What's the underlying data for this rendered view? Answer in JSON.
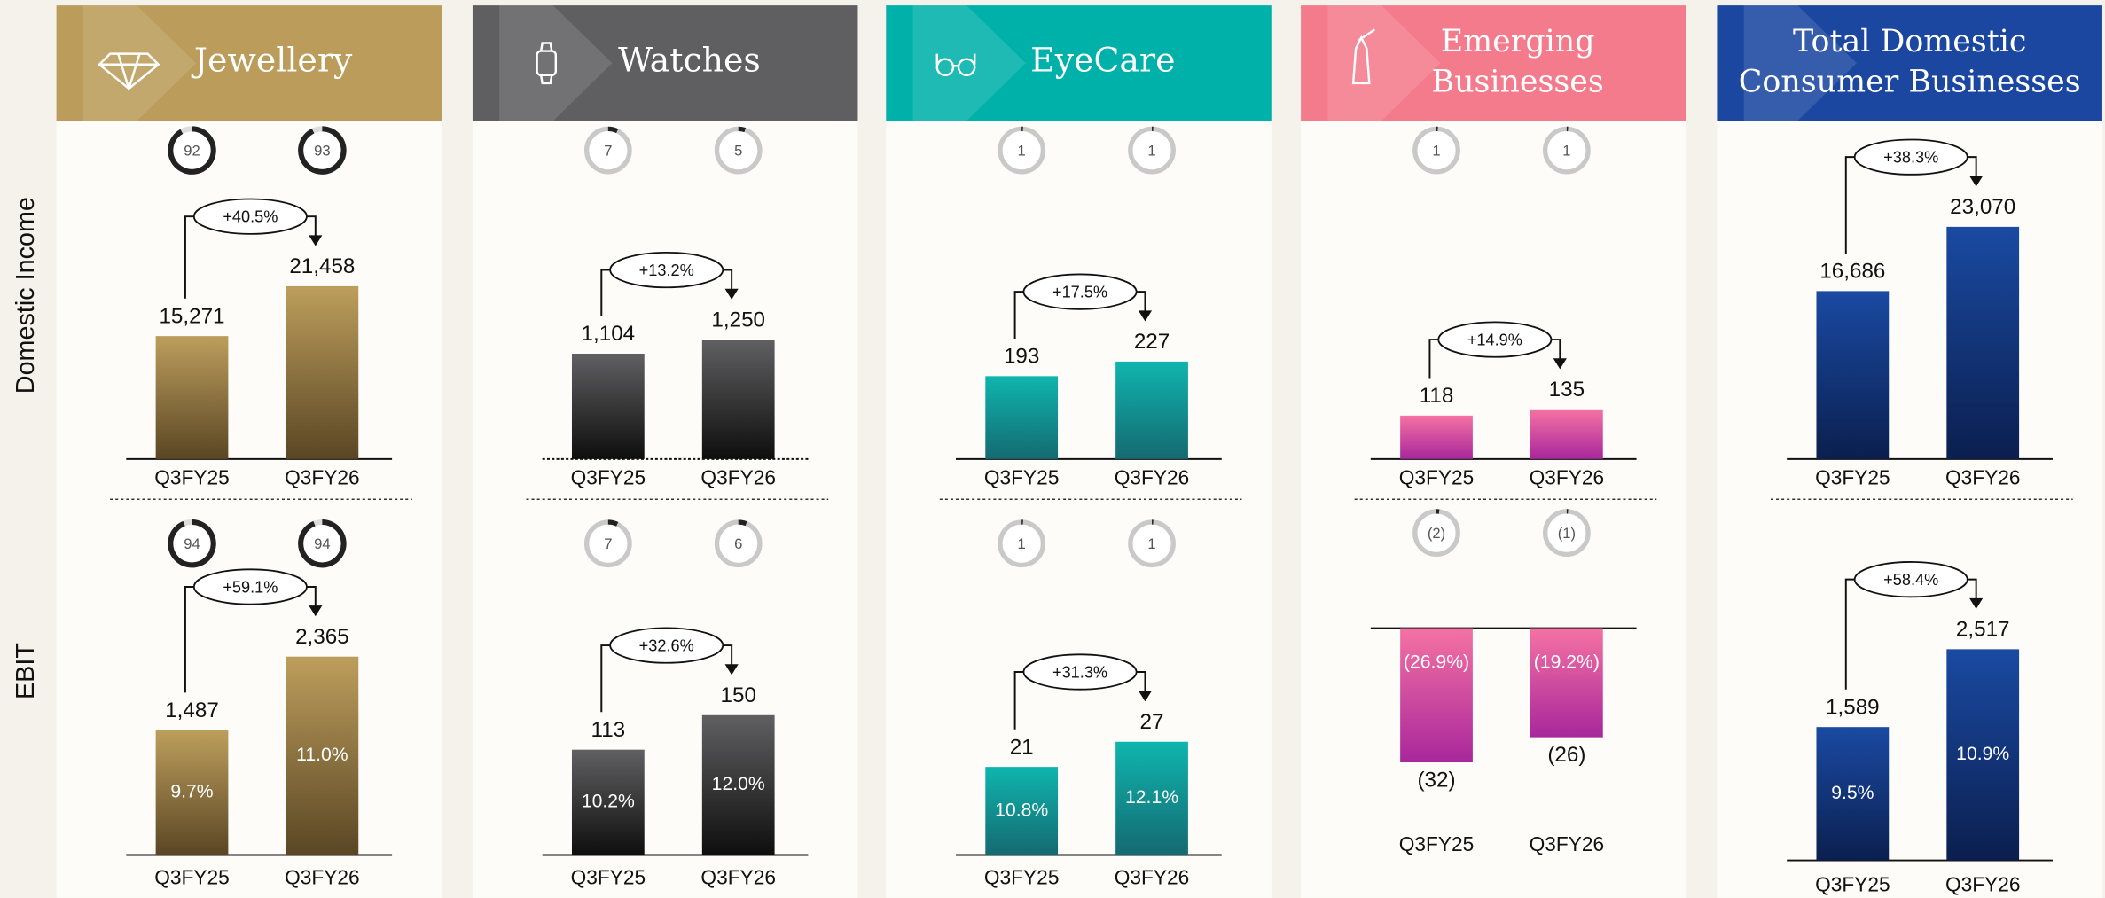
{
  "rows": [
    "Domestic Income",
    "EBIT"
  ],
  "columns": [
    {
      "title": [
        "Jewellery"
      ],
      "color": "#bb9c5a"
    },
    {
      "title": [
        "Watches"
      ],
      "color": "#5f5f61"
    },
    {
      "title": [
        "EyeCare"
      ],
      "color": "#00b1aa"
    },
    {
      "title": [
        "Emerging",
        "Businesses"
      ],
      "color": "#f47b8b"
    },
    {
      "title": [
        "Total Domestic",
        "Consumer Businesses"
      ],
      "color": "#1b47a0"
    }
  ],
  "chart_data": [
    {
      "type": "bar",
      "categories": [
        "Q3FY25",
        "Q3FY26"
      ],
      "values": [
        15271,
        21458
      ],
      "value_labels": [
        "15,271",
        "21,458"
      ],
      "change_label": "+40.5%",
      "shares": [
        92,
        93
      ],
      "ylim": [
        0,
        32000
      ],
      "colors": [
        "#bd9e5c",
        "#5a4624"
      ]
    },
    {
      "type": "bar",
      "categories": [
        "Q3FY25",
        "Q3FY26"
      ],
      "values": [
        1104,
        1250
      ],
      "value_labels": [
        "1,104",
        "1,250"
      ],
      "change_label": "+13.2%",
      "shares": [
        7,
        5
      ],
      "ylim": [
        0,
        2700
      ],
      "colors": [
        "#606062",
        "#0e0e0e"
      ]
    },
    {
      "type": "bar",
      "categories": [
        "Q3FY25",
        "Q3FY26"
      ],
      "values": [
        193,
        227
      ],
      "change_label": "+17.5%",
      "shares": [
        1,
        1
      ],
      "ylim": [
        0,
        600
      ],
      "colors": [
        "#0fb5ad",
        "#146a72"
      ]
    },
    {
      "type": "bar",
      "categories": [
        "Q3FY25",
        "Q3FY26"
      ],
      "values": [
        118,
        135
      ],
      "change_label": "+14.9%",
      "shares": [
        1,
        1
      ],
      "ylim": [
        0,
        700
      ],
      "colors": [
        "#f572a3",
        "#a8279b"
      ]
    },
    {
      "type": "bar",
      "categories": [
        "Q3FY25",
        "Q3FY26"
      ],
      "values": [
        16686,
        23070
      ],
      "value_labels": [
        "16,686",
        "23,070"
      ],
      "change_label": "+38.3%",
      "ylim": [
        0,
        25600
      ],
      "colors": [
        "#1a4aa2",
        "#0b1f4f"
      ]
    },
    {
      "type": "bar",
      "categories": [
        "Q3FY25",
        "Q3FY26"
      ],
      "values": [
        1487,
        2365
      ],
      "value_labels": [
        "1,487",
        "2,365"
      ],
      "change_label": "+59.1%",
      "shares": [
        94,
        94
      ],
      "margins": [
        9.7,
        11.0
      ],
      "margin_labels": [
        "9.7%",
        "11.0%"
      ],
      "ylim": [
        0,
        4000
      ],
      "colors": [
        "#bd9e5c",
        "#5a4624"
      ]
    },
    {
      "type": "bar",
      "categories": [
        "Q3FY25",
        "Q3FY26"
      ],
      "values": [
        113,
        150
      ],
      "change_label": "+32.6%",
      "shares": [
        7,
        6
      ],
      "margins": [
        10.2,
        12.0
      ],
      "margin_labels": [
        "10.2%",
        "12.0%"
      ],
      "ylim": [
        0,
        360
      ],
      "colors": [
        "#606062",
        "#0e0e0e"
      ]
    },
    {
      "type": "bar",
      "categories": [
        "Q3FY25",
        "Q3FY26"
      ],
      "values": [
        21,
        27
      ],
      "change_label": "+31.3%",
      "shares": [
        1,
        1
      ],
      "margins": [
        10.8,
        12.1
      ],
      "margin_labels": [
        "10.8%",
        "12.1%"
      ],
      "ylim": [
        0,
        80
      ],
      "colors": [
        "#0fb5ad",
        "#146a72"
      ]
    },
    {
      "type": "bar",
      "categories": [
        "Q3FY25",
        "Q3FY26"
      ],
      "values": [
        -32,
        -26
      ],
      "value_labels": [
        "(32)",
        "(26)"
      ],
      "shares": [
        -2,
        -1
      ],
      "share_labels": [
        "(2)",
        "(1)"
      ],
      "margins": [
        -26.9,
        -19.2
      ],
      "margin_labels": [
        "(26.9%)",
        "(19.2%)"
      ],
      "ylim": [
        -80,
        0
      ],
      "colors": [
        "#f572a3",
        "#a8279b"
      ]
    },
    {
      "type": "bar",
      "categories": [
        "Q3FY25",
        "Q3FY26"
      ],
      "values": [
        1589,
        2517
      ],
      "value_labels": [
        "1,589",
        "2,517"
      ],
      "change_label": "+58.4%",
      "margins": [
        9.5,
        10.9
      ],
      "margin_labels": [
        "9.5%",
        "10.9%"
      ],
      "ylim": [
        0,
        4000
      ],
      "colors": [
        "#1a4aa2",
        "#0b1f4f"
      ]
    }
  ]
}
